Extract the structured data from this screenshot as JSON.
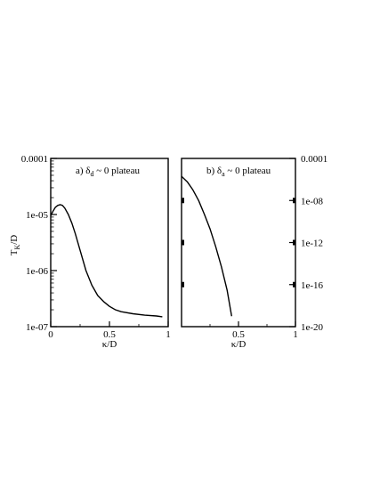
{
  "chart_data": [
    {
      "type": "line",
      "panel_label": "a)",
      "annotation": {
        "greek": "δ",
        "sub": "d",
        "rest": " ~ 0 plateau"
      },
      "xlabel": "κ/D",
      "ylabel": {
        "main": "T",
        "sub": "K",
        "rest": "/D"
      },
      "yscale": "log",
      "xlim": [
        0,
        1
      ],
      "ylim": [
        1e-07,
        0.0001
      ],
      "xticks": [
        0,
        0.5,
        1
      ],
      "xtick_labels": [
        "0",
        "0.5",
        "1"
      ],
      "yticks": [
        1e-07,
        1e-06,
        1e-05,
        0.0001
      ],
      "ytick_labels": [
        "1e-07",
        "1e-06",
        "1e-05",
        "0.0001"
      ],
      "yaxis_side": "left",
      "series": [
        {
          "x": [
            0.0,
            0.02,
            0.04,
            0.06,
            0.08,
            0.1,
            0.12,
            0.15,
            0.18,
            0.21,
            0.25,
            0.3,
            0.35,
            0.4,
            0.45,
            0.5,
            0.55,
            0.6,
            0.7,
            0.8,
            0.9,
            0.95
          ],
          "y": [
            9.5e-06,
            1.15e-05,
            1.35e-05,
            1.45e-05,
            1.5e-05,
            1.45e-05,
            1.3e-05,
            1e-05,
            7e-06,
            4.5e-06,
            2.3e-06,
            1e-06,
            5.5e-07,
            3.6e-07,
            2.8e-07,
            2.3e-07,
            2e-07,
            1.85e-07,
            1.7e-07,
            1.6e-07,
            1.55e-07,
            1.5e-07
          ]
        }
      ]
    },
    {
      "type": "line",
      "panel_label": "b)",
      "annotation": {
        "greek": "δ",
        "sub": "a",
        "rest": " ~ 0 plateau"
      },
      "xlabel": "κ/D",
      "yscale": "log",
      "xlim": [
        0,
        1
      ],
      "ylim": [
        1e-20,
        0.0001
      ],
      "xticks": [
        0.5,
        1
      ],
      "xtick_labels": [
        "0.5",
        "1"
      ],
      "yticks": [
        1e-20,
        1e-16,
        1e-12,
        1e-08,
        0.0001
      ],
      "ytick_labels": [
        "1e-20",
        "1e-16",
        "1e-12",
        "1e-08",
        "0.0001"
      ],
      "yaxis_side": "right",
      "series": [
        {
          "x": [
            0.0,
            0.05,
            0.1,
            0.15,
            0.2,
            0.25,
            0.3,
            0.35,
            0.4,
            0.44
          ],
          "y": [
            2e-06,
            6e-07,
            1e-07,
            1e-08,
            5e-10,
            2e-11,
            4e-13,
            5e-15,
            3e-17,
            1e-19
          ]
        }
      ]
    }
  ]
}
